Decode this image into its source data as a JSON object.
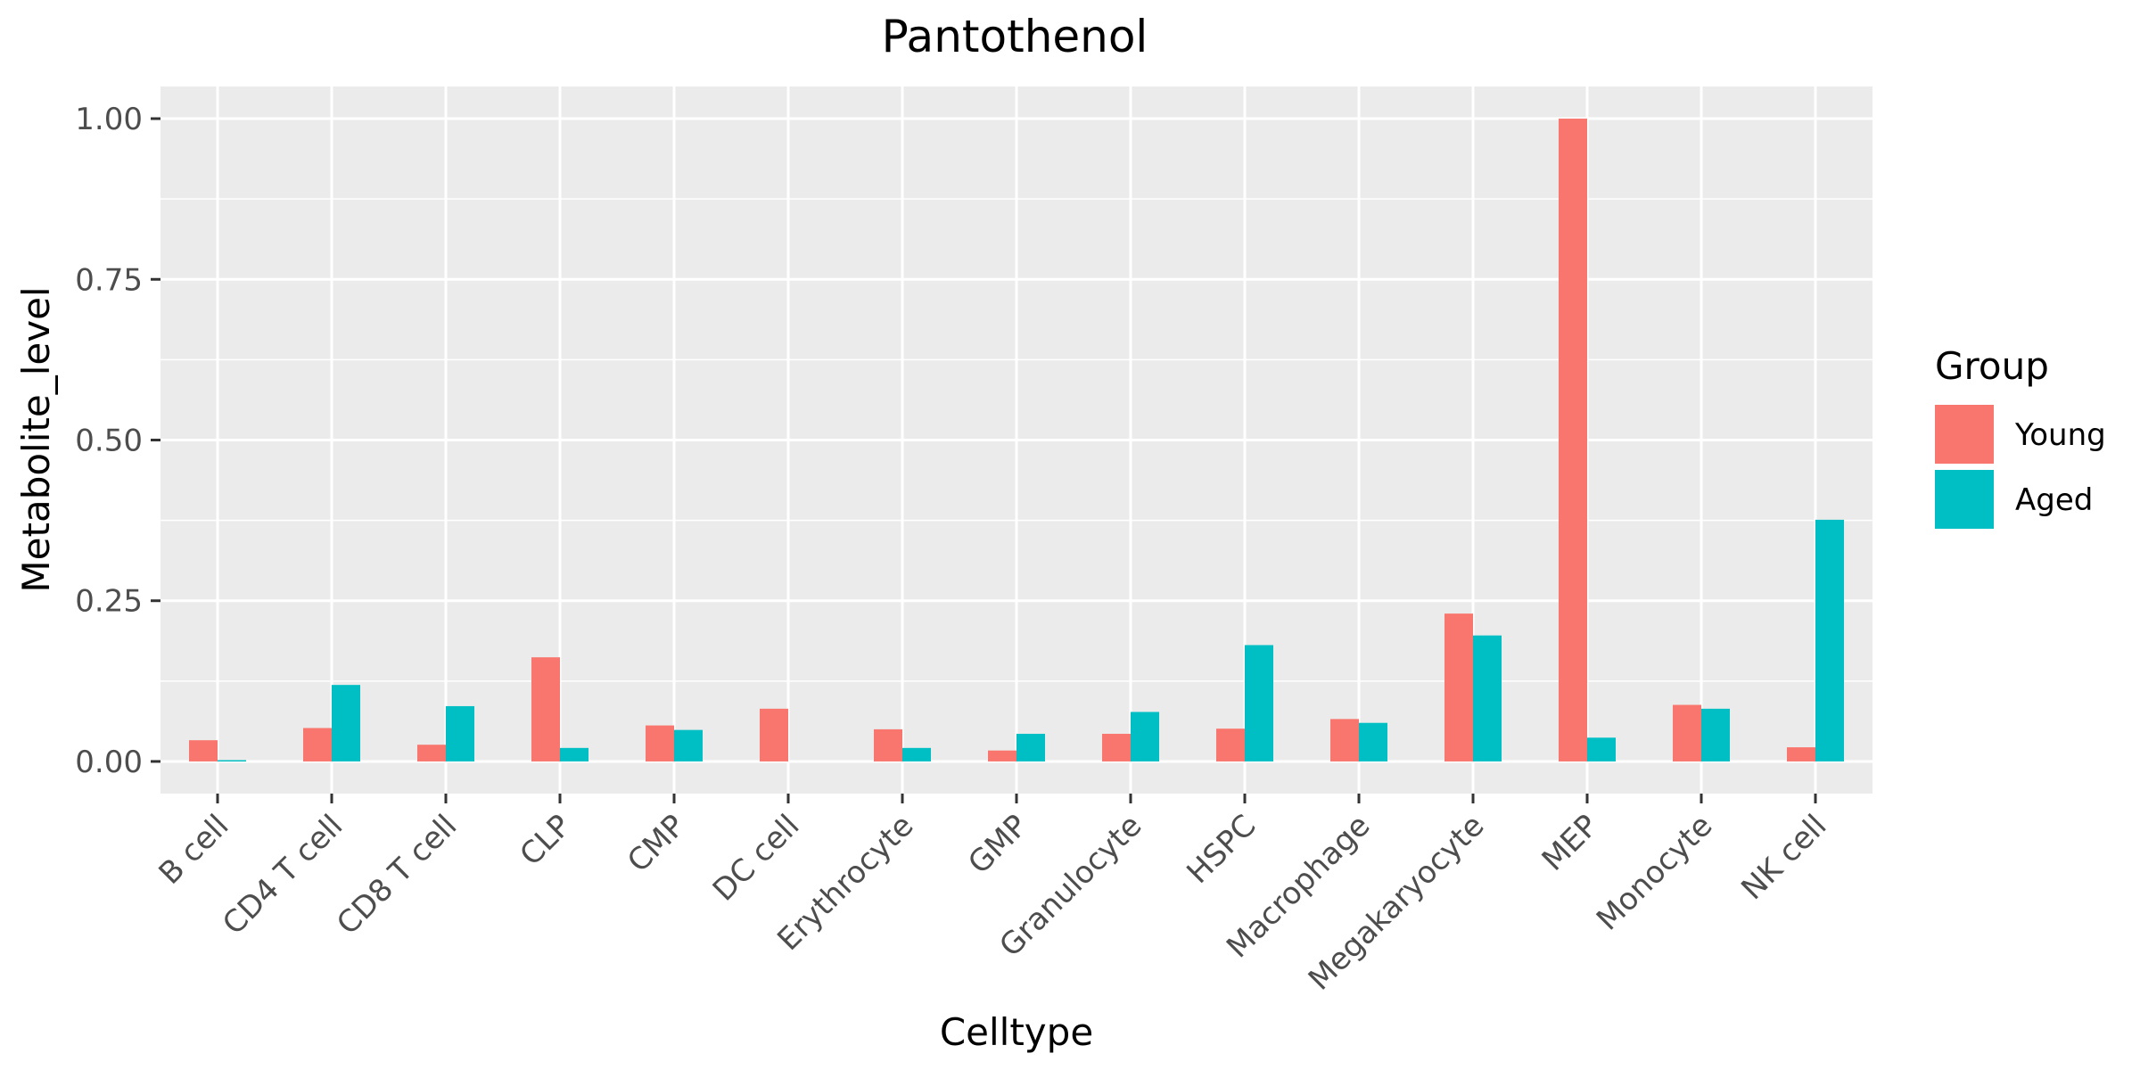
{
  "chart_data": {
    "type": "bar",
    "title": "Pantothenol",
    "xlabel": "Celltype",
    "ylabel": "Metabolite_level",
    "ylim": [
      -0.05,
      1.05
    ],
    "yticks": [
      0,
      0.25,
      0.5,
      0.75,
      1
    ],
    "ytick_labels": [
      "0.00",
      "0.25",
      "0.50",
      "0.75",
      "1.00"
    ],
    "grid": true,
    "legend": {
      "title": "Group",
      "position": "right"
    },
    "categories": [
      "B cell",
      "CD4 T cell",
      "CD8 T cell",
      "CLP",
      "CMP",
      "DC cell",
      "Erythrocyte",
      "GMP",
      "Granulocyte",
      "HSPC",
      "Macrophage",
      "Megakaryocyte",
      "MEP",
      "Monocyte",
      "NK cell"
    ],
    "series": [
      {
        "name": "Young",
        "color": "#F8766D",
        "values": [
          0.033,
          0.052,
          0.026,
          0.162,
          0.056,
          0.082,
          0.05,
          0.017,
          0.043,
          0.051,
          0.066,
          0.23,
          1.0,
          0.088,
          0.022
        ]
      },
      {
        "name": "Aged",
        "color": "#00BFC4",
        "values": [
          0.002,
          0.119,
          0.086,
          0.021,
          0.049,
          null,
          0.021,
          0.043,
          0.077,
          0.181,
          0.06,
          0.196,
          0.037,
          0.082,
          0.376
        ]
      }
    ]
  }
}
